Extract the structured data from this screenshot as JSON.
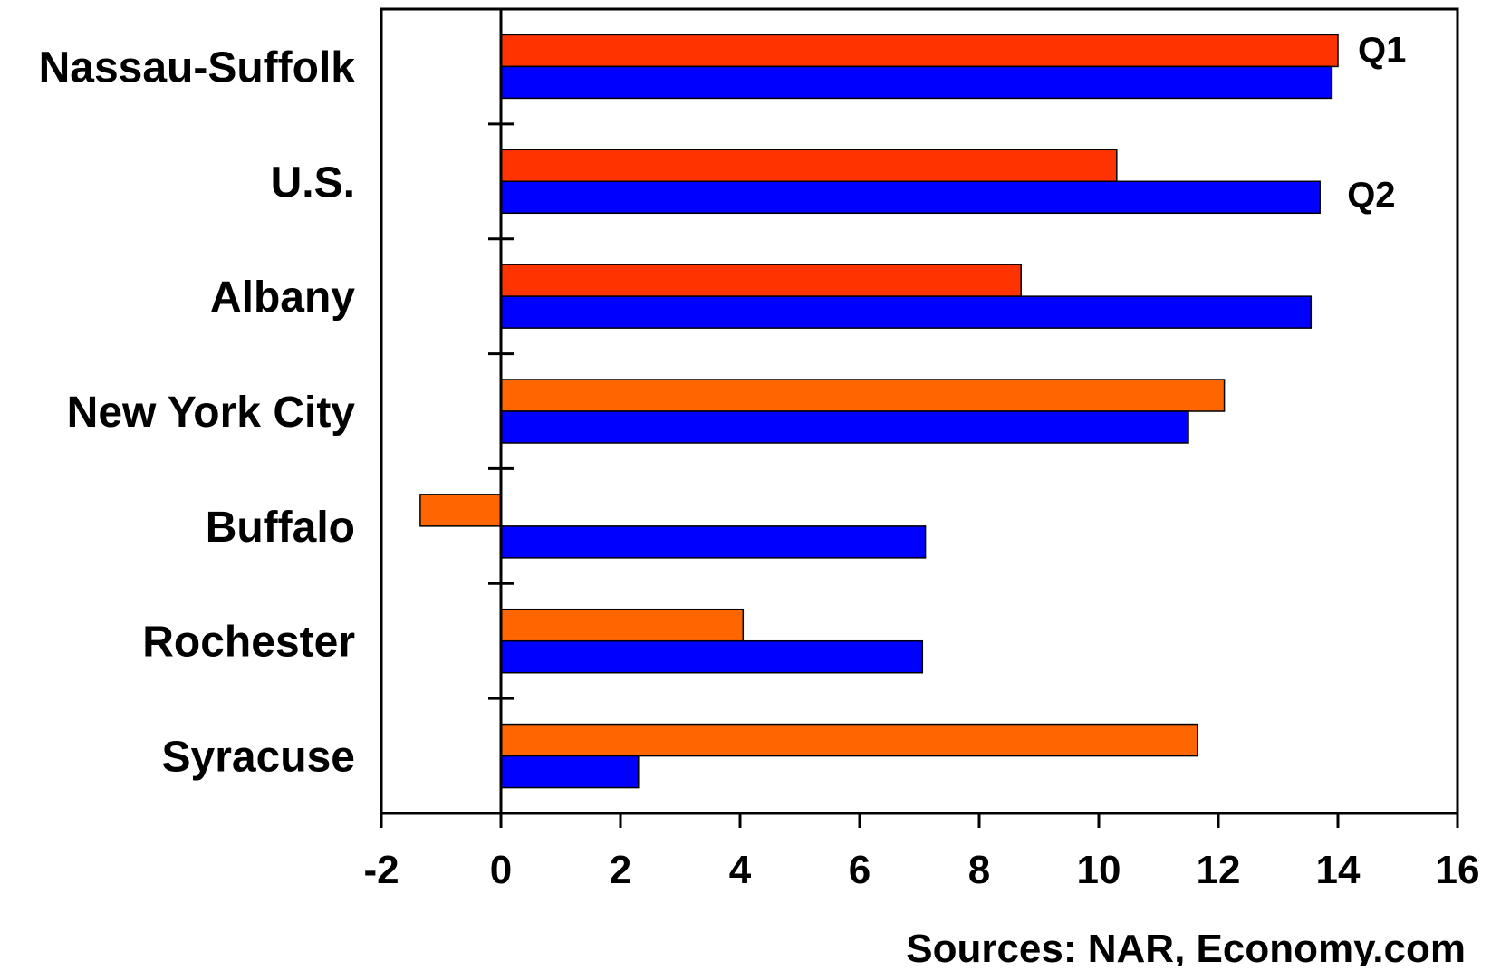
{
  "chart_data": {
    "type": "bar",
    "orientation": "horizontal",
    "categories": [
      "Nassau-Suffolk",
      "U.S.",
      "Albany",
      "New York City",
      "Buffalo",
      "Rochester",
      "Syracuse"
    ],
    "series": [
      {
        "name": "Q1",
        "values": [
          14.0,
          10.3,
          8.7,
          12.1,
          -1.35,
          4.05,
          11.65
        ],
        "colors": [
          "#ff3300",
          "#ff3300",
          "#ff3300",
          "#ff6600",
          "#ff6600",
          "#ff6600",
          "#ff6600"
        ]
      },
      {
        "name": "Q2",
        "values": [
          13.9,
          13.7,
          13.55,
          11.5,
          7.1,
          7.05,
          2.3
        ],
        "colors": [
          "#0000ff",
          "#0000ff",
          "#0000ff",
          "#0000ff",
          "#0000ff",
          "#0000ff",
          "#0000ff"
        ]
      }
    ],
    "xlim": [
      -2,
      16
    ],
    "xticks": [
      -2,
      0,
      2,
      4,
      6,
      8,
      10,
      12,
      14,
      16
    ],
    "title": "",
    "xlabel": "",
    "ylabel": "",
    "grid": false,
    "legend": "series names labeled beside top bars (Q1, Q2)",
    "source": "Sources: NAR, Economy.com"
  }
}
